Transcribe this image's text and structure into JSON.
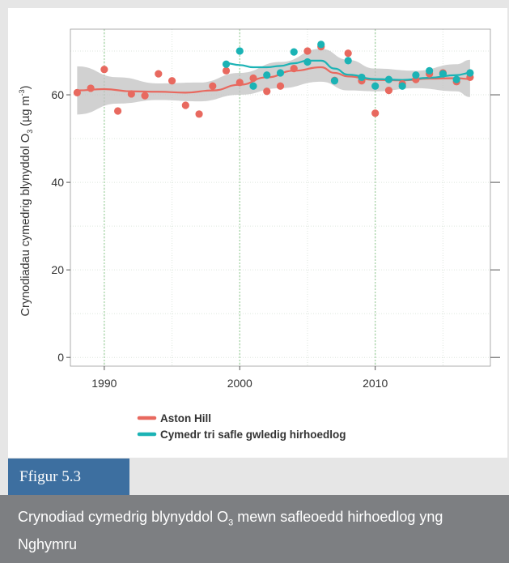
{
  "figure": {
    "tab_label": "Ffigur 5.3",
    "caption_pre": "Crynodiad cymedrig blynyddol O",
    "caption_sub": "3",
    "caption_post": " mewn safleoedd hirhoedlog yng Nghymru"
  },
  "chart_data": {
    "type": "scatter",
    "xlabel": "",
    "ylabel": "Crynodiadau cymedrig blynyddol O3 (µg m-3)",
    "ylabel_parts": {
      "pre": "Crynodiadau cymedrig blynyddol O",
      "sub": "3",
      "mid": " (µg m",
      "sup": "-3",
      "post": ")"
    },
    "xlim": [
      1987.5,
      2018.5
    ],
    "ylim": [
      -2,
      75
    ],
    "x_ticks": [
      1990,
      2000,
      2010
    ],
    "y_ticks": [
      0,
      20,
      40,
      60
    ],
    "grid": true,
    "legend_position": "bottom",
    "series": [
      {
        "name": "Aston Hill",
        "color": "#e8695f",
        "points": [
          [
            1988,
            60.5
          ],
          [
            1989,
            61.5
          ],
          [
            1990,
            65.8
          ],
          [
            1991,
            56.3
          ],
          [
            1992,
            60.2
          ],
          [
            1993,
            59.8
          ],
          [
            1994,
            64.8
          ],
          [
            1995,
            63.2
          ],
          [
            1996,
            57.6
          ],
          [
            1997,
            55.6
          ],
          [
            1998,
            62.0
          ],
          [
            1999,
            65.5
          ],
          [
            2000,
            62.8
          ],
          [
            2001,
            63.8
          ],
          [
            2002,
            60.8
          ],
          [
            2003,
            62.0
          ],
          [
            2004,
            66.0
          ],
          [
            2005,
            70.0
          ],
          [
            2006,
            71.0
          ],
          [
            2007,
            63.3
          ],
          [
            2008,
            69.5
          ],
          [
            2009,
            63.2
          ],
          [
            2010,
            55.8
          ],
          [
            2011,
            61.0
          ],
          [
            2012,
            62.5
          ],
          [
            2013,
            63.5
          ],
          [
            2014,
            64.8
          ],
          [
            2015,
            65.0
          ],
          [
            2016,
            63.0
          ],
          [
            2017,
            64.0
          ]
        ],
        "smooth": [
          [
            1988,
            61.0
          ],
          [
            1990,
            61.3
          ],
          [
            1992,
            60.8
          ],
          [
            1994,
            60.7
          ],
          [
            1996,
            60.5
          ],
          [
            1998,
            61.0
          ],
          [
            2000,
            62.3
          ],
          [
            2002,
            64.0
          ],
          [
            2004,
            65.5
          ],
          [
            2006,
            66.3
          ],
          [
            2007,
            65.0
          ],
          [
            2008,
            64.2
          ],
          [
            2010,
            63.4
          ],
          [
            2012,
            63.3
          ],
          [
            2014,
            63.7
          ],
          [
            2016,
            63.8
          ],
          [
            2017,
            63.6
          ]
        ]
      },
      {
        "name": "Cymedr tri safle gwledig hirhoedlog",
        "color": "#1bb3b5",
        "points": [
          [
            1999,
            67.0
          ],
          [
            2000,
            70.0
          ],
          [
            2001,
            62.0
          ],
          [
            2002,
            64.5
          ],
          [
            2003,
            65.0
          ],
          [
            2004,
            69.8
          ],
          [
            2005,
            67.5
          ],
          [
            2006,
            71.5
          ],
          [
            2007,
            63.2
          ],
          [
            2008,
            67.8
          ],
          [
            2009,
            64.0
          ],
          [
            2010,
            62.0
          ],
          [
            2011,
            63.5
          ],
          [
            2012,
            62.0
          ],
          [
            2013,
            64.5
          ],
          [
            2014,
            65.5
          ],
          [
            2015,
            64.8
          ],
          [
            2016,
            63.5
          ],
          [
            2017,
            65.0
          ]
        ],
        "smooth": [
          [
            1999,
            67.2
          ],
          [
            2000,
            66.8
          ],
          [
            2001,
            66.3
          ],
          [
            2002,
            66.3
          ],
          [
            2003,
            66.6
          ],
          [
            2004,
            67.2
          ],
          [
            2005,
            67.8
          ],
          [
            2006,
            67.8
          ],
          [
            2007,
            66.0
          ],
          [
            2008,
            64.6
          ],
          [
            2010,
            63.6
          ],
          [
            2012,
            63.4
          ],
          [
            2014,
            63.9
          ],
          [
            2016,
            64.5
          ],
          [
            2017,
            65.0
          ]
        ]
      }
    ],
    "ci_band": {
      "upper": [
        [
          1988,
          66.5
        ],
        [
          1991,
          64.0
        ],
        [
          1994,
          62.6
        ],
        [
          1997,
          62.8
        ],
        [
          2000,
          65.0
        ],
        [
          2003,
          67.5
        ],
        [
          2006,
          70.5
        ],
        [
          2008,
          68.0
        ],
        [
          2010,
          66.0
        ],
        [
          2013,
          65.5
        ],
        [
          2016,
          67.0
        ],
        [
          2017,
          68.0
        ]
      ],
      "lower": [
        [
          1988,
          55.5
        ],
        [
          1991,
          58.0
        ],
        [
          1994,
          58.8
        ],
        [
          1997,
          58.5
        ],
        [
          2000,
          60.0
        ],
        [
          2003,
          61.5
        ],
        [
          2006,
          63.0
        ],
        [
          2008,
          61.0
        ],
        [
          2010,
          60.8
        ],
        [
          2013,
          61.5
        ],
        [
          2016,
          60.8
        ],
        [
          2017,
          59.5
        ]
      ]
    }
  }
}
